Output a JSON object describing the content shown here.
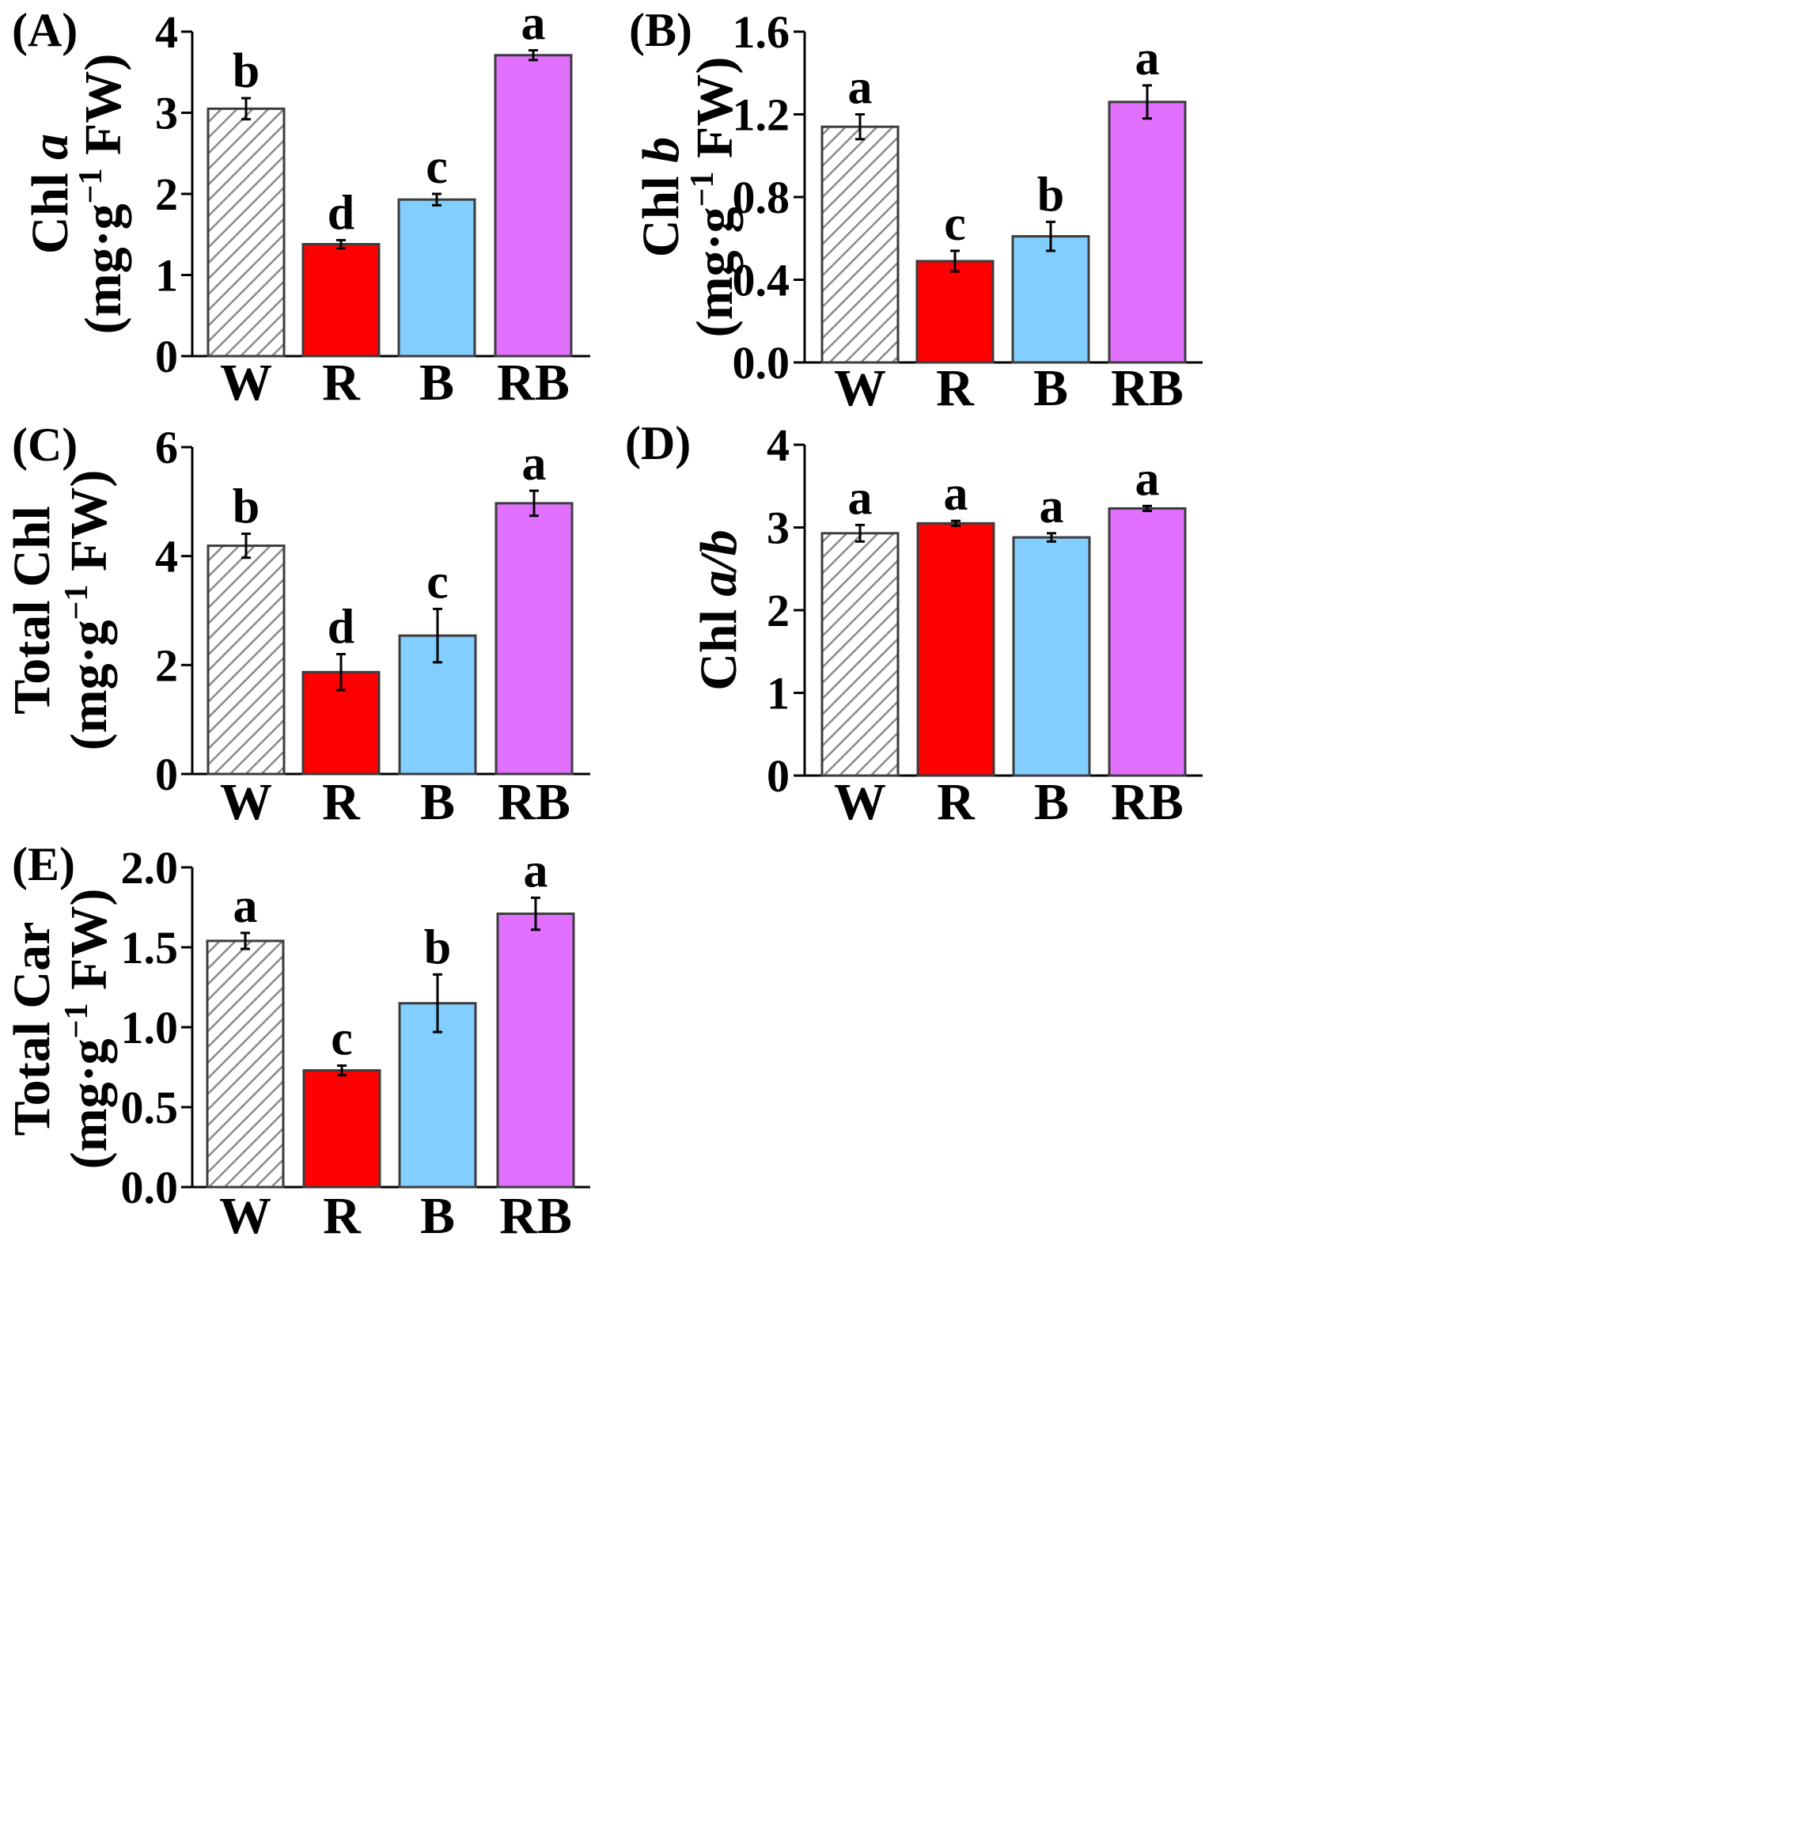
{
  "figure": {
    "categories": [
      "W",
      "R",
      "B",
      "RB"
    ],
    "bar_colors": [
      "#e0e0e0",
      "#ff0000",
      "#82ceff",
      "#e270ff"
    ],
    "hatch_color": "#8a8a8a",
    "axis_color": "#000000"
  },
  "chart_data": [
    {
      "id": "A",
      "panel_label": "(A)",
      "type": "bar",
      "ylabel": {
        "pre": "Chl ",
        "ital": "a",
        "post": "",
        "unit": "(mg·g",
        "unit_sup": "−1",
        "unit_post": " FW)"
      },
      "ylim": [
        0,
        4
      ],
      "yticks": [
        0,
        1,
        2,
        3,
        4
      ],
      "ytick_labels": [
        "0",
        "1",
        "2",
        "3",
        "4"
      ],
      "categories": [
        "W",
        "R",
        "B",
        "RB"
      ],
      "values": [
        3.05,
        1.38,
        1.93,
        3.71
      ],
      "errors": [
        0.13,
        0.05,
        0.07,
        0.06
      ],
      "letters": [
        "b",
        "d",
        "c",
        "a"
      ]
    },
    {
      "id": "B",
      "panel_label": "(B)",
      "type": "bar",
      "ylabel": {
        "pre": "Chl ",
        "ital": "b",
        "post": "",
        "unit": "(mg·g",
        "unit_sup": "−1",
        "unit_post": " FW)"
      },
      "ylim": [
        0,
        1.6
      ],
      "yticks": [
        0,
        0.4,
        0.8,
        1.2,
        1.6
      ],
      "ytick_labels": [
        "0.0",
        "0.4",
        "0.8",
        "1.2",
        "1.6"
      ],
      "categories": [
        "W",
        "R",
        "B",
        "RB"
      ],
      "values": [
        1.14,
        0.49,
        0.61,
        1.26
      ],
      "errors": [
        0.06,
        0.05,
        0.07,
        0.08
      ],
      "letters": [
        "a",
        "c",
        "b",
        "a"
      ]
    },
    {
      "id": "C",
      "panel_label": "(C)",
      "type": "bar",
      "ylabel": {
        "pre": "Total Chl",
        "ital": "",
        "post": "",
        "unit": "(mg·g",
        "unit_sup": "−1",
        "unit_post": " FW)"
      },
      "ylim": [
        0,
        6
      ],
      "yticks": [
        0,
        2,
        4,
        6
      ],
      "ytick_labels": [
        "0",
        "2",
        "4",
        "6"
      ],
      "categories": [
        "W",
        "R",
        "B",
        "RB"
      ],
      "values": [
        4.19,
        1.87,
        2.54,
        4.97
      ],
      "errors": [
        0.22,
        0.33,
        0.49,
        0.23
      ],
      "letters": [
        "b",
        "d",
        "c",
        "a"
      ]
    },
    {
      "id": "D",
      "panel_label": "(D)",
      "type": "bar",
      "ylabel": {
        "pre": "Chl ",
        "ital": "a/b",
        "post": "",
        "unit": "",
        "unit_sup": "",
        "unit_post": ""
      },
      "ylim": [
        0,
        4
      ],
      "yticks": [
        0,
        1,
        2,
        3,
        4
      ],
      "ytick_labels": [
        "0",
        "1",
        "2",
        "3",
        "4"
      ],
      "categories": [
        "W",
        "R",
        "B",
        "RB"
      ],
      "values": [
        2.93,
        3.05,
        2.88,
        3.23
      ],
      "errors": [
        0.1,
        0.03,
        0.05,
        0.03
      ],
      "letters": [
        "a",
        "a",
        "a",
        "a"
      ]
    },
    {
      "id": "E",
      "panel_label": "(E)",
      "type": "bar",
      "ylabel": {
        "pre": "Total Car",
        "ital": "",
        "post": "",
        "unit": "(mg·g",
        "unit_sup": "−1",
        "unit_post": " FW)"
      },
      "ylim": [
        0,
        2.0
      ],
      "yticks": [
        0,
        0.5,
        1.0,
        1.5,
        2.0
      ],
      "ytick_labels": [
        "0.0",
        "0.5",
        "1.0",
        "1.5",
        "2.0"
      ],
      "categories": [
        "W",
        "R",
        "B",
        "RB"
      ],
      "values": [
        1.54,
        0.73,
        1.15,
        1.71
      ],
      "errors": [
        0.05,
        0.03,
        0.18,
        0.1
      ],
      "letters": [
        "a",
        "c",
        "b",
        "a"
      ]
    }
  ]
}
